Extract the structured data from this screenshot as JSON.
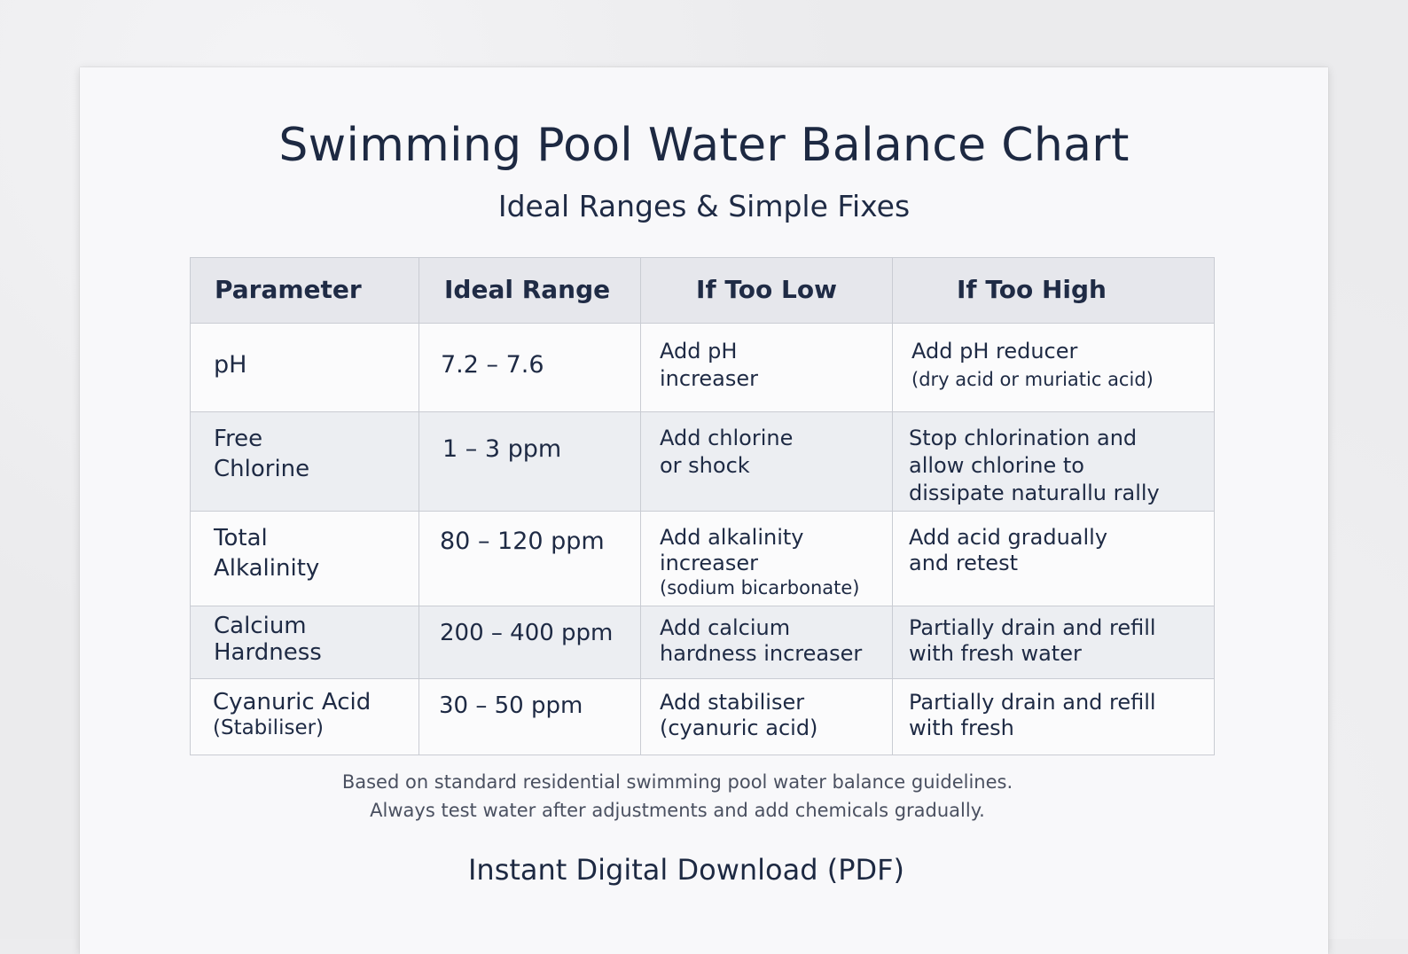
{
  "title": "Swimming Pool Water Balance Chart",
  "subtitle": "Ideal Ranges & Simple Fixes",
  "table": {
    "headers": [
      "Parameter",
      "Ideal Range",
      "If Too Low",
      "If Too High"
    ],
    "rows": [
      {
        "parameter": [
          "pH"
        ],
        "parameter_sub": "",
        "ideal_range": "7.2 – 7.6",
        "too_low": [
          "Add pH",
          "increaser"
        ],
        "too_low_sub": "",
        "too_high": [
          "Add pH reducer"
        ],
        "too_high_sub": "(dry acid or muriatic acid)"
      },
      {
        "parameter": [
          "Free",
          "Chlorine"
        ],
        "parameter_sub": "",
        "ideal_range": "1 – 3 ppm",
        "too_low": [
          "Add chlorine",
          "or shock"
        ],
        "too_low_sub": "",
        "too_high": [
          "Stop chlorination and",
          "allow chlorine to",
          "dissipate naturallu rally"
        ],
        "too_high_sub": ""
      },
      {
        "parameter": [
          "Total",
          "Alkalinity"
        ],
        "parameter_sub": "",
        "ideal_range": "80 – 120 ppm",
        "too_low": [
          "Add alkalinity",
          "increaser"
        ],
        "too_low_sub": "(sodium bicarbonate)",
        "too_high": [
          "Add acid gradually",
          "and retest"
        ],
        "too_high_sub": ""
      },
      {
        "parameter": [
          "Calcium",
          "Hardness"
        ],
        "parameter_sub": "",
        "ideal_range": "200 – 400 ppm",
        "too_low": [
          "Add calcium",
          "hardness increaser"
        ],
        "too_low_sub": "",
        "too_high": [
          "Partially drain and refill",
          "with fresh water"
        ],
        "too_high_sub": ""
      },
      {
        "parameter": [
          "Cyanuric Acid"
        ],
        "parameter_sub": "(Stabiliser)",
        "ideal_range": "30 – 50 ppm",
        "too_low": [
          "Add stabiliser",
          "(cyanuric acid)"
        ],
        "too_low_sub": "",
        "too_high": [
          "Partially drain and refill",
          "with fresh"
        ],
        "too_high_sub": ""
      }
    ]
  },
  "footnote_line1": "Based on standard residential swimming pool water balance guidelines.",
  "footnote_line2": "Always test water after adjustments and add chemicals gradually.",
  "download_label": "Instant Digital Download (PDF)"
}
